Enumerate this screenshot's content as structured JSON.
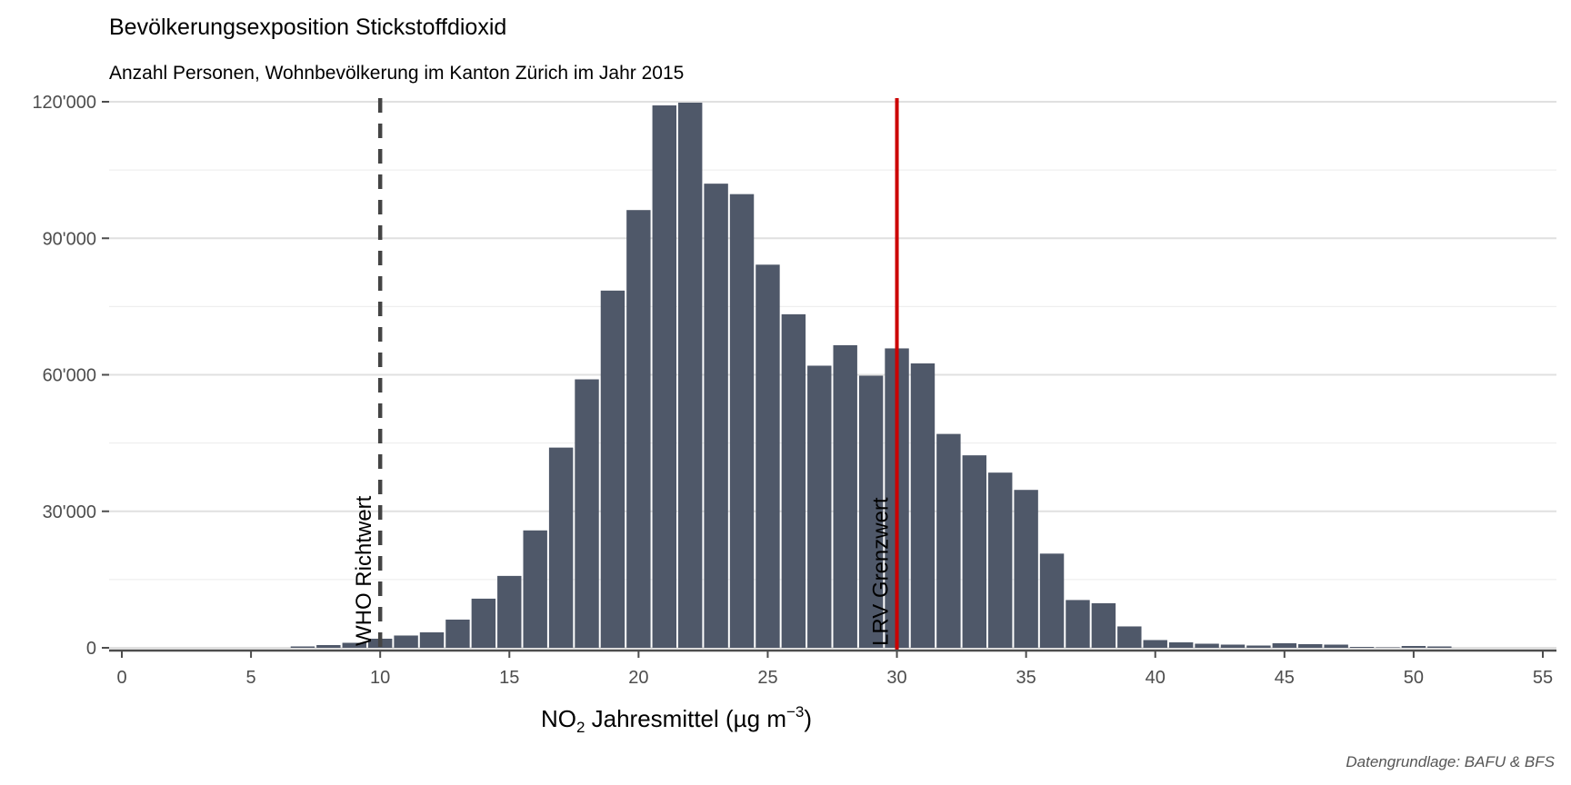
{
  "chart_data": {
    "type": "bar",
    "title": "Bevölkerungsexposition Stickstoffdioxid",
    "subtitle": "Anzahl Personen, Wohnbevölkerung im Kanton Zürich im Jahr 2015",
    "xlabel": {
      "main": "NO",
      "subscript": "2",
      "rest": " Jahresmittel (µg m",
      "superscript": "−3",
      "close": ")"
    },
    "caption": "Datengrundlage: BAFU & BFS",
    "xlim": [
      0,
      55
    ],
    "ylim": [
      0,
      120000
    ],
    "x_ticks": [
      0,
      5,
      10,
      15,
      20,
      25,
      30,
      35,
      40,
      45,
      50,
      55
    ],
    "x_tick_labels": [
      "0",
      "5",
      "10",
      "15",
      "20",
      "25",
      "30",
      "35",
      "40",
      "45",
      "50",
      "55"
    ],
    "y_ticks": [
      0,
      30000,
      60000,
      90000,
      120000
    ],
    "y_tick_labels": [
      "0",
      "30'000",
      "60'000",
      "90'000",
      "120'000"
    ],
    "grid": "horizontal",
    "bar_color": "#4f5869",
    "x": [
      7,
      8,
      9,
      10,
      11,
      12,
      13,
      14,
      15,
      16,
      17,
      18,
      19,
      20,
      21,
      22,
      23,
      24,
      25,
      26,
      27,
      28,
      29,
      30,
      31,
      32,
      33,
      34,
      35,
      36,
      37,
      38,
      39,
      40,
      41,
      42,
      43,
      44,
      45,
      46,
      47,
      48,
      49,
      50,
      51
    ],
    "values": [
      300,
      600,
      1100,
      2000,
      2700,
      3400,
      6200,
      10800,
      15800,
      25800,
      44000,
      59000,
      78500,
      96200,
      119200,
      119800,
      102000,
      99700,
      84200,
      73300,
      62000,
      66500,
      59800,
      65800,
      62500,
      47000,
      42300,
      38500,
      34700,
      20700,
      10500,
      9800,
      4700,
      1700,
      1200,
      900,
      700,
      500,
      1000,
      800,
      700,
      200,
      100,
      400,
      300
    ],
    "reference_lines": [
      {
        "x": 10,
        "label": "WHO Richtwert",
        "color": "#444444",
        "style": "dashed"
      },
      {
        "x": 30,
        "label": "LRV Grenzwert",
        "color": "#cc0000",
        "style": "solid"
      }
    ]
  }
}
